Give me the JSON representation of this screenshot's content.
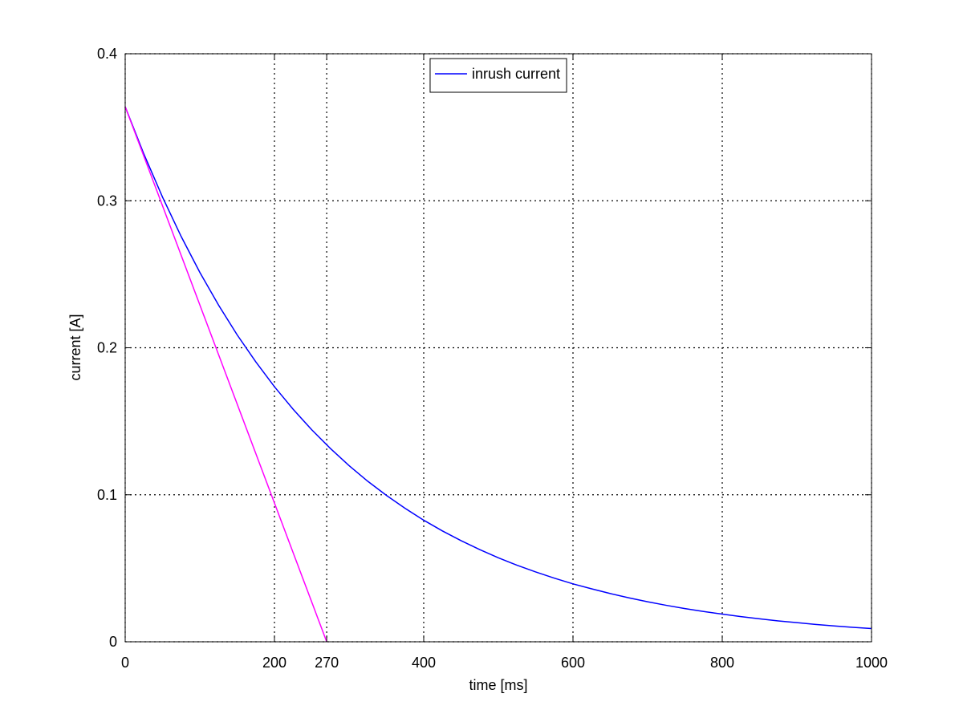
{
  "chart_data": {
    "type": "line",
    "xlabel": "time [ms]",
    "ylabel": "current [A]",
    "xlim": [
      0,
      1000
    ],
    "ylim": [
      0,
      0.4
    ],
    "xticks": [
      0,
      200,
      270,
      400,
      600,
      800,
      1000
    ],
    "yticks": [
      0,
      0.1,
      0.2,
      0.3,
      0.4
    ],
    "grid": true,
    "legend": "top",
    "series": [
      {
        "name": "inrush current",
        "color": "#0000ff",
        "x": [
          0,
          25,
          50,
          75,
          100,
          125,
          150,
          175,
          200,
          225,
          250,
          275,
          300,
          325,
          350,
          375,
          400,
          425,
          450,
          475,
          500,
          525,
          550,
          575,
          600,
          625,
          650,
          675,
          700,
          725,
          750,
          775,
          800,
          825,
          850,
          875,
          900,
          925,
          950,
          975,
          1000
        ],
        "values": [
          0.364,
          0.3318,
          0.3025,
          0.2757,
          0.2513,
          0.2291,
          0.2088,
          0.1904,
          0.1735,
          0.1582,
          0.1442,
          0.1315,
          0.1198,
          0.1092,
          0.0996,
          0.0908,
          0.0827,
          0.0754,
          0.0688,
          0.0627,
          0.0571,
          0.0521,
          0.0475,
          0.0433,
          0.0394,
          0.036,
          0.0328,
          0.0299,
          0.0272,
          0.0248,
          0.0226,
          0.0206,
          0.0188,
          0.0171,
          0.0156,
          0.0142,
          0.013,
          0.0118,
          0.0108,
          0.0098,
          0.009
        ]
      },
      {
        "color": "#ff00ff",
        "x": [
          0,
          270
        ],
        "values": [
          0.364,
          0
        ]
      }
    ]
  }
}
